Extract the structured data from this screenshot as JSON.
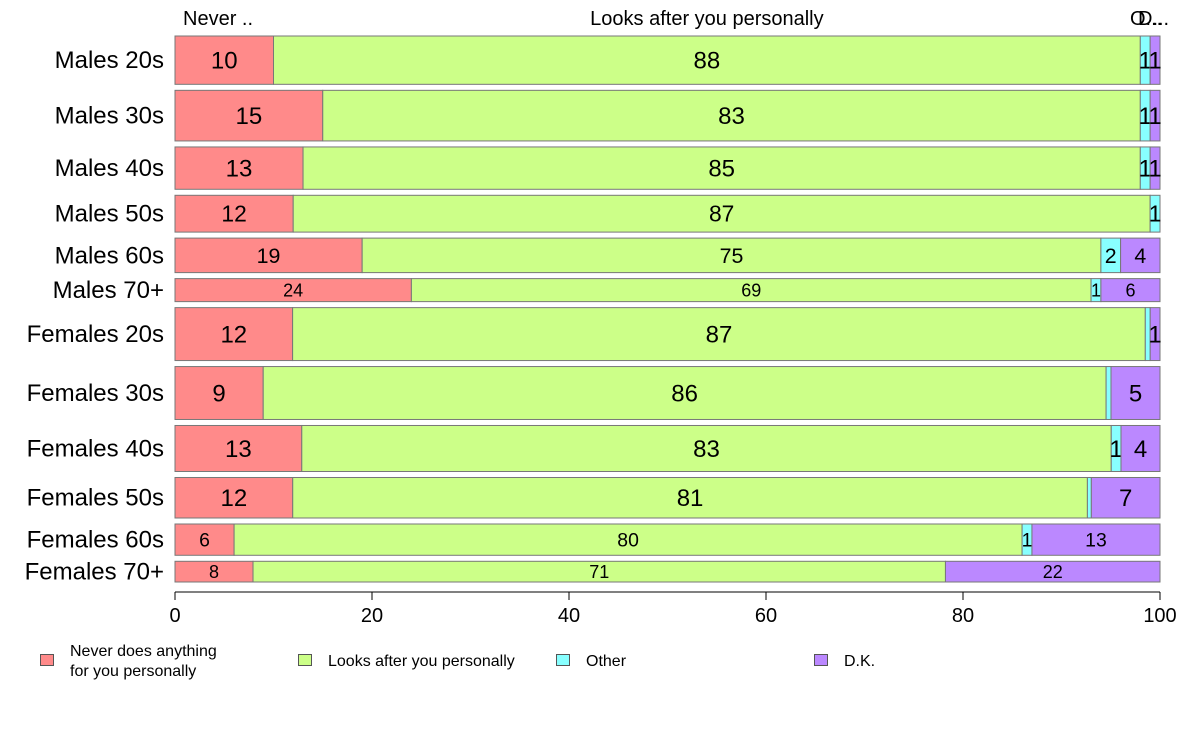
{
  "chart_data": {
    "type": "bar",
    "orientation": "horizontal",
    "stacked": true,
    "normalized_percent": true,
    "xlim": [
      0,
      100
    ],
    "xticks": [
      0,
      20,
      40,
      60,
      80,
      100
    ],
    "categories": [
      "Males 20s",
      "Males 30s",
      "Males 40s",
      "Males 50s",
      "Males 60s",
      "Males 70+",
      "Females 20s",
      "Females 30s",
      "Females 40s",
      "Females 50s",
      "Females 60s",
      "Females 70+"
    ],
    "top_labels": [
      "Never ..",
      "Looks after you personally",
      "O...",
      "D..."
    ],
    "series": [
      {
        "name": "Never does anything\nfor you personally",
        "color": "#ff8a8a",
        "values": [
          10,
          15,
          13,
          12,
          19,
          24,
          12,
          9,
          13,
          12,
          6,
          8
        ]
      },
      {
        "name": "Looks after you personally",
        "color": "#ccff88",
        "values": [
          88,
          83,
          85,
          87,
          75,
          69,
          87,
          86,
          83,
          81,
          80,
          71
        ]
      },
      {
        "name": "Other",
        "color": "#88ffff",
        "values": [
          1,
          1,
          1,
          1,
          2,
          1,
          0.5,
          0.5,
          1,
          0.4,
          1,
          0
        ]
      },
      {
        "name": "D.K.",
        "color": "#bb88ff",
        "values": [
          1,
          1,
          1,
          0,
          4,
          6,
          1,
          5,
          4,
          7,
          13,
          22
        ]
      }
    ],
    "value_labels": [
      [
        "10",
        "88",
        "1",
        "1"
      ],
      [
        "15",
        "83",
        "1",
        "1"
      ],
      [
        "13",
        "85",
        "1",
        "1"
      ],
      [
        "12",
        "87",
        "1",
        ""
      ],
      [
        "19",
        "75",
        "2",
        "4"
      ],
      [
        "24",
        "69",
        "1",
        "6"
      ],
      [
        "12",
        "87",
        "",
        "1"
      ],
      [
        "9",
        "86",
        "",
        "5"
      ],
      [
        "13",
        "83",
        "1",
        "4"
      ],
      [
        "12",
        "81",
        "",
        "7"
      ],
      [
        "6",
        "80",
        "1",
        "13"
      ],
      [
        "8",
        "71",
        "",
        "22"
      ]
    ],
    "row_weights": [
      1.05,
      1.1,
      0.92,
      0.8,
      0.75,
      0.5,
      1.15,
      1.15,
      1.0,
      0.88,
      0.68,
      0.45
    ],
    "grid": false,
    "legend_position": "bottom"
  }
}
